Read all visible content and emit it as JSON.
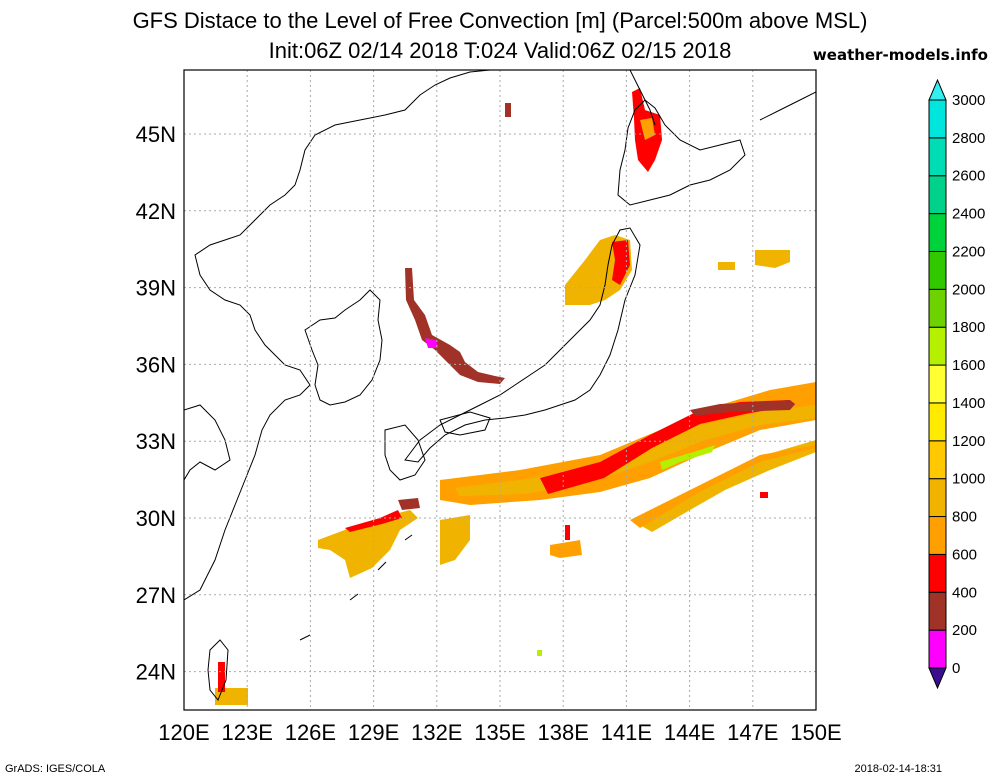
{
  "header": {
    "title_line1": "GFS Distace to the Level of Free Convection [m] (Parcel:500m above MSL)",
    "title_line2": "Init:06Z 02/14 2018 T:024 Valid:06Z 02/15 2018",
    "site": "weather-models.info"
  },
  "footer": {
    "credit": "GrADS: IGES/COLA",
    "timestamp": "2018-02-14-18:31"
  },
  "map": {
    "lon_range": [
      120,
      150
    ],
    "lat_range": [
      22.5,
      47.5
    ],
    "lon_ticks": [
      "120E",
      "123E",
      "126E",
      "129E",
      "132E",
      "135E",
      "138E",
      "141E",
      "144E",
      "147E",
      "150E"
    ],
    "lat_ticks": [
      "24N",
      "27N",
      "30N",
      "33N",
      "36N",
      "39N",
      "42N",
      "45N"
    ],
    "grid": true
  },
  "colorbar": {
    "labels": [
      "0",
      "200",
      "400",
      "600",
      "800",
      "1000",
      "1200",
      "1400",
      "1600",
      "1800",
      "2000",
      "2200",
      "2400",
      "2600",
      "2800",
      "3000"
    ],
    "colors": [
      "#3a0f8f",
      "#ff00ff",
      "#a03228",
      "#ff0000",
      "#ffa000",
      "#f0b400",
      "#ffc800",
      "#ffeb00",
      "#ffff32",
      "#b4f000",
      "#6ed200",
      "#32c800",
      "#00d23c",
      "#00d28c",
      "#00dcb4",
      "#00e6dc",
      "#32f0f0"
    ]
  }
}
